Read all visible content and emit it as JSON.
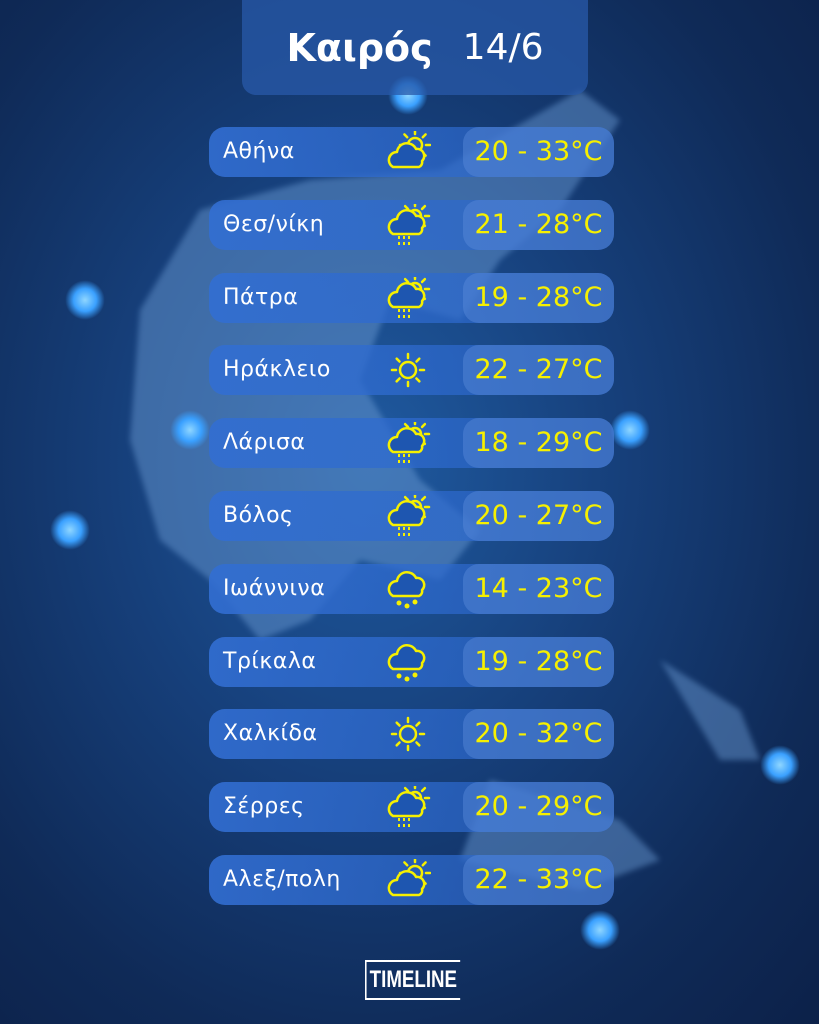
{
  "header": {
    "title": "Καιρός",
    "date": "14/6"
  },
  "accent_color": "#f6f000",
  "rows": [
    {
      "city": "Αθήνα",
      "icon": "partly-cloudy",
      "temp": "20 - 33°C"
    },
    {
      "city": "Θεσ/νίκη",
      "icon": "partly-cloudy-rain",
      "temp": "21 - 28°C"
    },
    {
      "city": "Πάτρα",
      "icon": "partly-cloudy-rain",
      "temp": "19 - 28°C"
    },
    {
      "city": "Ηράκλειο",
      "icon": "sun",
      "temp": "22 - 27°C"
    },
    {
      "city": "Λάρισα",
      "icon": "partly-cloudy-rain",
      "temp": "18 - 29°C"
    },
    {
      "city": "Βόλος",
      "icon": "partly-cloudy-rain",
      "temp": "20 - 27°C"
    },
    {
      "city": "Ιωάννινα",
      "icon": "rain",
      "temp": "14 - 23°C"
    },
    {
      "city": "Τρίκαλα",
      "icon": "rain",
      "temp": "19 - 28°C"
    },
    {
      "city": "Χαλκίδα",
      "icon": "sun",
      "temp": "20 - 32°C"
    },
    {
      "city": "Σέρρες",
      "icon": "partly-cloudy-rain",
      "temp": "20 - 29°C"
    },
    {
      "city": "Αλεξ/πολη",
      "icon": "partly-cloudy",
      "temp": "22 - 33°C"
    }
  ],
  "logo": "TIMELINE"
}
